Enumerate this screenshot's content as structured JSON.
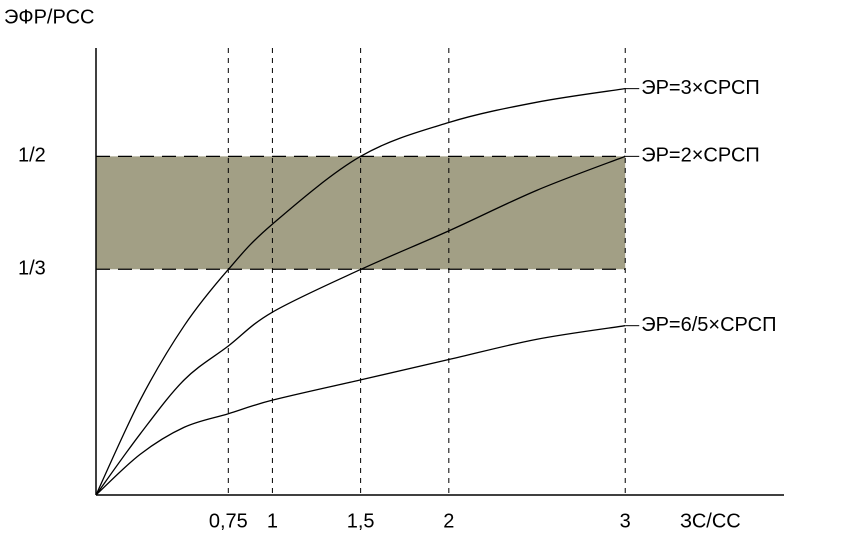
{
  "chart_data": {
    "type": "line",
    "y_label": "ЭФР/РСС",
    "x_label": "ЗС/СС",
    "x": [
      0,
      0.25,
      0.5,
      0.75,
      1,
      1.5,
      2,
      2.5,
      3
    ],
    "series": [
      {
        "name": "ЭР=3×СРСП",
        "color": "#000000",
        "values": [
          0,
          0.14,
          0.25,
          0.333,
          0.4,
          0.5,
          0.55,
          0.58,
          0.6
        ]
      },
      {
        "name": "ЭР=2×СРСП",
        "color": "#000000",
        "values": [
          0,
          0.09,
          0.17,
          0.22,
          0.27,
          0.333,
          0.39,
          0.45,
          0.5
        ]
      },
      {
        "name": "ЭР=6/5×СРСП",
        "color": "#000000",
        "values": [
          0,
          0.06,
          0.1,
          0.12,
          0.14,
          0.17,
          0.2,
          0.23,
          0.25
        ]
      }
    ],
    "xlim": [
      0,
      3.9
    ],
    "ylim": [
      0,
      0.66
    ],
    "xticks": [
      {
        "value": 0.75,
        "label": "0,75"
      },
      1,
      {
        "value": 1.5,
        "label": "1,5"
      },
      2,
      3
    ],
    "yticks": [
      {
        "value": 0.3333,
        "label": "1/3"
      },
      {
        "value": 0.5,
        "label": "1/2"
      }
    ],
    "band_color": "#a29f85"
  }
}
